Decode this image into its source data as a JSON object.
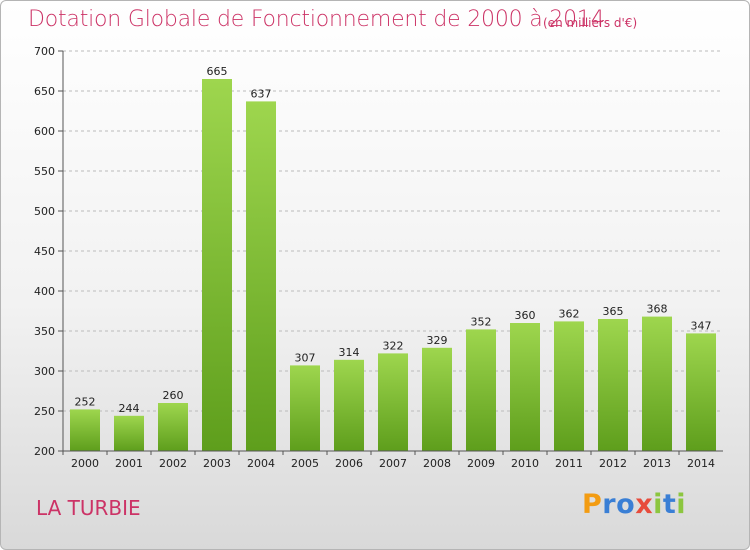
{
  "header": {
    "title": "Dotation Globale de Fonctionnement de 2000 à 2014",
    "unit_note": "(en milliers d'€)"
  },
  "footer": {
    "commune": "LA TURBIE",
    "logo_letters": [
      {
        "char": "P",
        "color": "#f39c12"
      },
      {
        "char": "r",
        "color": "#3a7fd5"
      },
      {
        "char": "o",
        "color": "#3a7fd5"
      },
      {
        "char": "x",
        "color": "#e74c3c"
      },
      {
        "char": "i",
        "color": "#8cc63f"
      },
      {
        "char": "t",
        "color": "#3a7fd5"
      },
      {
        "char": "i",
        "color": "#8cc63f"
      }
    ]
  },
  "chart_data": {
    "type": "bar",
    "categories": [
      "2000",
      "2001",
      "2002",
      "2003",
      "2004",
      "2005",
      "2006",
      "2007",
      "2008",
      "2009",
      "2010",
      "2011",
      "2012",
      "2013",
      "2014"
    ],
    "values": [
      252,
      244,
      260,
      665,
      637,
      307,
      314,
      322,
      329,
      352,
      360,
      362,
      365,
      368,
      347
    ],
    "title": "Dotation Globale de Fonctionnement de 2000 à 2014",
    "ylim": [
      200,
      700
    ],
    "yticks": [
      200,
      250,
      300,
      350,
      400,
      450,
      500,
      550,
      600,
      650,
      700
    ],
    "grid": true,
    "bar_color_top": "#9ed64e",
    "bar_color_bottom": "#5e9e1c",
    "axis_color": "#555555",
    "grid_color": "#bbbbbb"
  }
}
